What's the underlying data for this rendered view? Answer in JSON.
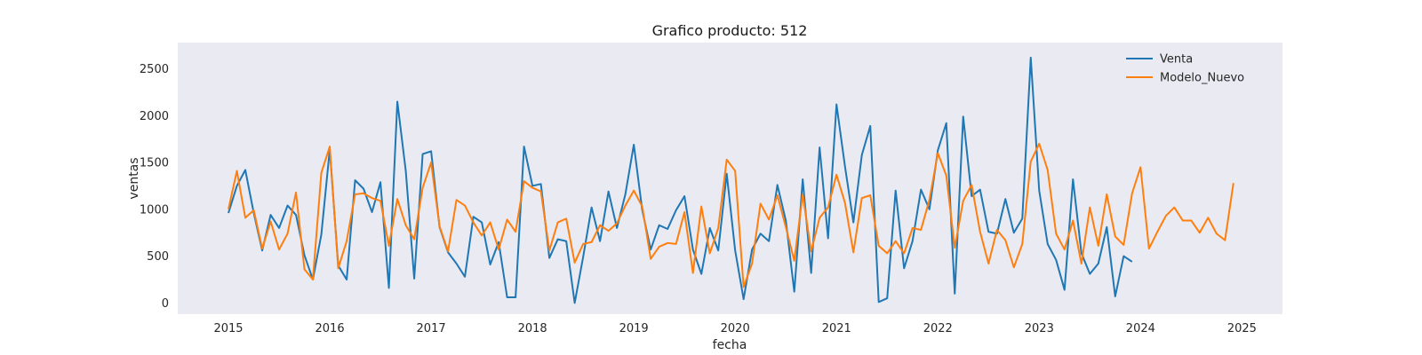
{
  "chart_data": {
    "type": "line",
    "title": "Grafico producto: 512",
    "xlabel": "fecha",
    "ylabel": "ventas",
    "xlim": [
      2014.5,
      2025.4
    ],
    "ylim": [
      -120,
      2780
    ],
    "x_ticks": [
      2015,
      2016,
      2017,
      2018,
      2019,
      2020,
      2021,
      2022,
      2023,
      2024,
      2025
    ],
    "x_tick_labels": [
      "2015",
      "2016",
      "2017",
      "2018",
      "2019",
      "2020",
      "2021",
      "2022",
      "2023",
      "2024",
      "2025"
    ],
    "y_ticks": [
      0,
      500,
      1000,
      1500,
      2000,
      2500
    ],
    "y_tick_labels": [
      "0",
      "500",
      "1000",
      "1500",
      "2000",
      "2500"
    ],
    "grid": false,
    "legend_position": "top-right",
    "start": 2015.0,
    "step": 0.08333,
    "series": [
      {
        "name": "Venta",
        "color": "#1f77b4",
        "values": [
          960,
          1250,
          1420,
          960,
          560,
          940,
          800,
          1040,
          940,
          510,
          250,
          730,
          1640,
          400,
          250,
          1310,
          1220,
          970,
          1290,
          160,
          2150,
          1410,
          260,
          1590,
          1620,
          810,
          540,
          420,
          280,
          920,
          860,
          410,
          650,
          60,
          60,
          1670,
          1250,
          1270,
          480,
          680,
          660,
          0,
          490,
          1020,
          660,
          1190,
          800,
          1160,
          1690,
          990,
          570,
          830,
          790,
          990,
          1140,
          570,
          310,
          800,
          560,
          1380,
          560,
          40,
          570,
          740,
          660,
          1260,
          880,
          120,
          1320,
          320,
          1660,
          690,
          2120,
          1460,
          860,
          1580,
          1890,
          10,
          50,
          1200,
          370,
          660,
          1210,
          1000,
          1630,
          1920,
          100,
          1990,
          1140,
          1210,
          760,
          740,
          1110,
          750,
          900,
          2620,
          1200,
          630,
          460,
          140,
          1320,
          530,
          310,
          420,
          810,
          70,
          500,
          440
        ]
      },
      {
        "name": "Modelo_Nuevo",
        "color": "#ff7f0e",
        "values": [
          1000,
          1410,
          910,
          990,
          580,
          870,
          570,
          740,
          1180,
          360,
          250,
          1390,
          1670,
          370,
          660,
          1160,
          1170,
          1120,
          1090,
          610,
          1110,
          830,
          680,
          1230,
          1500,
          820,
          550,
          1100,
          1040,
          860,
          720,
          860,
          570,
          890,
          760,
          1300,
          1230,
          1190,
          560,
          860,
          900,
          430,
          630,
          650,
          830,
          770,
          850,
          1040,
          1200,
          1030,
          470,
          600,
          640,
          630,
          970,
          320,
          1030,
          530,
          800,
          1530,
          1410,
          170,
          420,
          1060,
          890,
          1150,
          810,
          450,
          1160,
          550,
          910,
          1020,
          1370,
          1070,
          540,
          1120,
          1150,
          610,
          530,
          660,
          530,
          800,
          780,
          1100,
          1600,
          1360,
          590,
          1090,
          1260,
          760,
          420,
          780,
          670,
          380,
          630,
          1510,
          1700,
          1420,
          740,
          570,
          880,
          420,
          1020,
          610,
          1160,
          710,
          620,
          1170,
          1450,
          580,
          760,
          930,
          1020,
          880,
          880,
          750,
          910,
          740,
          670,
          1280
        ]
      }
    ]
  }
}
